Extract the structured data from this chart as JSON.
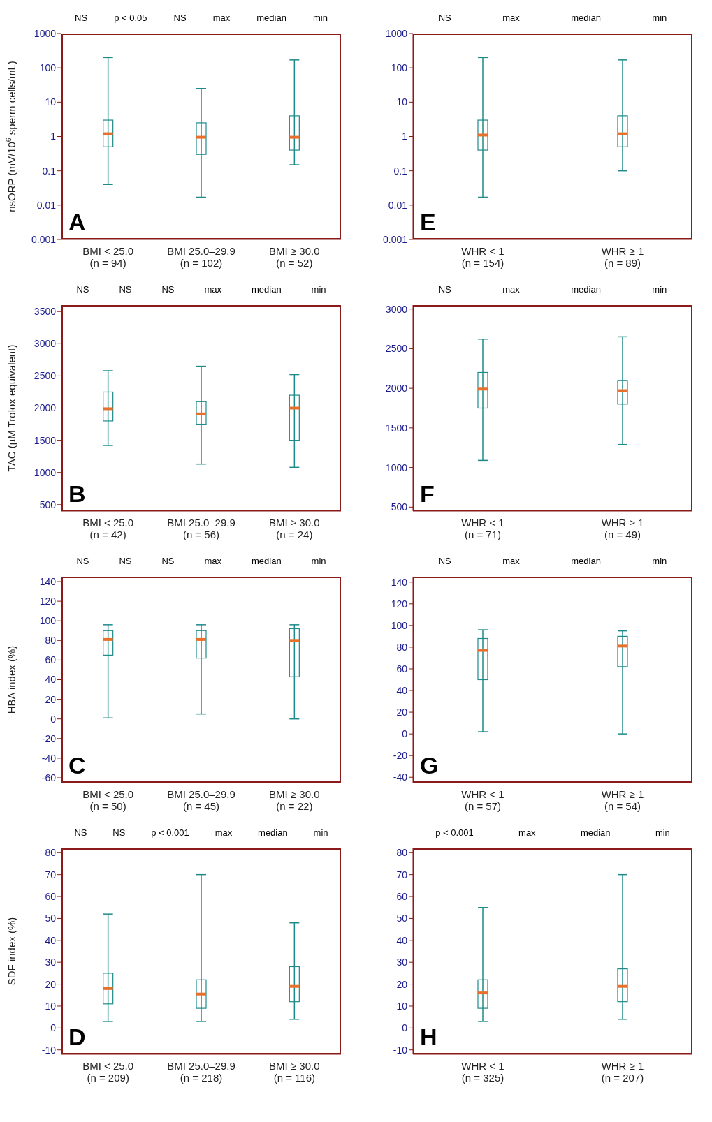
{
  "chart_data": [
    {
      "type": "box",
      "title": "A",
      "ylabel": "nsORP (mV/10$^{6}$ sperm cells/mL)",
      "categories": [
        "BMI < 25.0 (n = 94)",
        "BMI 25.0–29.9 (n = 102)",
        "BMI ≥ 30.0 (n = 52)"
      ],
      "log": "y",
      "ylim": [
        0.001,
        1000
      ],
      "yticks": [
        0.001,
        0.01,
        0.1,
        1,
        10,
        100,
        1000
      ],
      "color": "#1f8a8a",
      "boxes": [
        {
          "low": 0.04,
          "q1": 0.5,
          "median": 1.2,
          "q3": 3,
          "high": 200
        },
        {
          "low": 0.017,
          "q1": 0.3,
          "median": 0.95,
          "q3": 2.5,
          "high": 25
        },
        {
          "low": 0.15,
          "q1": 0.4,
          "median": 0.95,
          "q3": 4,
          "high": 170
        }
      ],
      "annotations": [
        "NS",
        "p < 0.05",
        "NS",
        "max",
        "median",
        "min"
      ]
    },
    {
      "type": "box",
      "title": "E",
      "categories": [
        "WHR < 1 (n = 154)",
        "WHR ≥ 1 (n = 89)"
      ],
      "log": "y",
      "ylim": [
        0.001,
        1000
      ],
      "yticks": [
        0.001,
        0.01,
        0.1,
        1,
        10,
        100,
        1000
      ],
      "color": "#1f8a8a",
      "boxes": [
        {
          "low": 0.017,
          "q1": 0.4,
          "median": 1.1,
          "q3": 3,
          "high": 200
        },
        {
          "low": 0.1,
          "q1": 0.5,
          "median": 1.2,
          "q3": 4,
          "high": 170
        }
      ],
      "annotations": [
        "NS",
        "max",
        "median",
        "min"
      ]
    },
    {
      "type": "box",
      "title": "B",
      "ylabel": "TAC (µM Trolox equivalent)",
      "categories": [
        "BMI < 25.0 (n = 42)",
        "BMI 25.0–29.9 (n = 56)",
        "BMI ≥ 30.0 (n = 24)"
      ],
      "ylim": [
        400,
        3600
      ],
      "yticks": [
        500,
        1000,
        1500,
        2000,
        2500,
        3000,
        3500
      ],
      "color": "#1f8a8a",
      "boxes": [
        {
          "low": 1420,
          "q1": 1800,
          "median": 1990,
          "q3": 2250,
          "high": 2580
        },
        {
          "low": 1130,
          "q1": 1750,
          "median": 1910,
          "q3": 2100,
          "high": 2650
        },
        {
          "low": 1080,
          "q1": 1500,
          "median": 2000,
          "q3": 2200,
          "high": 2520
        }
      ],
      "annotations": [
        "NS",
        "NS",
        "NS",
        "max",
        "median",
        "min"
      ]
    },
    {
      "type": "box",
      "title": "F",
      "categories": [
        "WHR < 1 (n = 71)",
        "WHR ≥ 1 (n = 49)"
      ],
      "ylim": [
        450,
        3050
      ],
      "yticks": [
        500,
        1000,
        1500,
        2000,
        2500,
        3000
      ],
      "color": "#1f8a8a",
      "boxes": [
        {
          "low": 1090,
          "q1": 1750,
          "median": 1990,
          "q3": 2200,
          "high": 2620
        },
        {
          "low": 1290,
          "q1": 1800,
          "median": 1970,
          "q3": 2100,
          "high": 2650
        }
      ],
      "annotations": [
        "NS",
        "max",
        "median",
        "min"
      ]
    },
    {
      "type": "box",
      "title": "C",
      "ylabel": "HBA index (%)",
      "categories": [
        "BMI < 25.0 (n = 50)",
        "BMI 25.0–29.9 (n = 45)",
        "BMI ≥ 30.0 (n = 22)"
      ],
      "ylim": [
        -65,
        145
      ],
      "yticks": [
        -60,
        -40,
        -20,
        0,
        20,
        40,
        60,
        80,
        100,
        120,
        140
      ],
      "color": "#1f8a8a",
      "boxes": [
        {
          "low": 1,
          "q1": 65,
          "median": 81,
          "q3": 90,
          "high": 96
        },
        {
          "low": 5,
          "q1": 62,
          "median": 81,
          "q3": 90,
          "high": 96
        },
        {
          "low": 0,
          "q1": 43,
          "median": 80,
          "q3": 92,
          "high": 96
        }
      ],
      "annotations": [
        "NS",
        "NS",
        "NS",
        "max",
        "median",
        "min"
      ]
    },
    {
      "type": "box",
      "title": "G",
      "categories": [
        "WHR < 1 (n = 57)",
        "WHR ≥ 1 (n = 54)"
      ],
      "ylim": [
        -45,
        145
      ],
      "yticks": [
        -40,
        -20,
        0,
        20,
        40,
        60,
        80,
        100,
        120,
        140
      ],
      "color": "#1f8a8a",
      "boxes": [
        {
          "low": 2,
          "q1": 50,
          "median": 77,
          "q3": 88,
          "high": 96
        },
        {
          "low": 0,
          "q1": 62,
          "median": 81,
          "q3": 90,
          "high": 95
        }
      ],
      "annotations": [
        "NS",
        "max",
        "median",
        "min"
      ]
    },
    {
      "type": "box",
      "title": "D",
      "ylabel": "SDF index (%)",
      "categories": [
        "BMI < 25.0 (n = 209)",
        "BMI 25.0–29.9 (n = 218)",
        "BMI ≥ 30.0 (n = 116)"
      ],
      "ylim": [
        -12,
        82
      ],
      "yticks": [
        -10,
        0,
        10,
        20,
        30,
        40,
        50,
        60,
        70,
        80
      ],
      "color": "#1f8a8a",
      "boxes": [
        {
          "low": 3,
          "q1": 11,
          "median": 18,
          "q3": 25,
          "high": 52
        },
        {
          "low": 3,
          "q1": 9,
          "median": 15.5,
          "q3": 22,
          "high": 70
        },
        {
          "low": 4,
          "q1": 12,
          "median": 19,
          "q3": 28,
          "high": 48
        }
      ],
      "annotations": [
        "NS",
        "NS",
        "p < 0.001",
        "max",
        "median",
        "min"
      ]
    },
    {
      "type": "box",
      "title": "H",
      "categories": [
        "WHR < 1 (n = 325)",
        "WHR ≥ 1 (n = 207)"
      ],
      "ylim": [
        -12,
        82
      ],
      "yticks": [
        -10,
        0,
        10,
        20,
        30,
        40,
        50,
        60,
        70,
        80
      ],
      "color": "#1f8a8a",
      "boxes": [
        {
          "low": 3,
          "q1": 9,
          "median": 16,
          "q3": 22,
          "high": 55
        },
        {
          "low": 4,
          "q1": 12,
          "median": 19,
          "q3": 27,
          "high": 70
        }
      ],
      "annotations": [
        "p < 0.001",
        "max",
        "median",
        "min"
      ]
    }
  ]
}
